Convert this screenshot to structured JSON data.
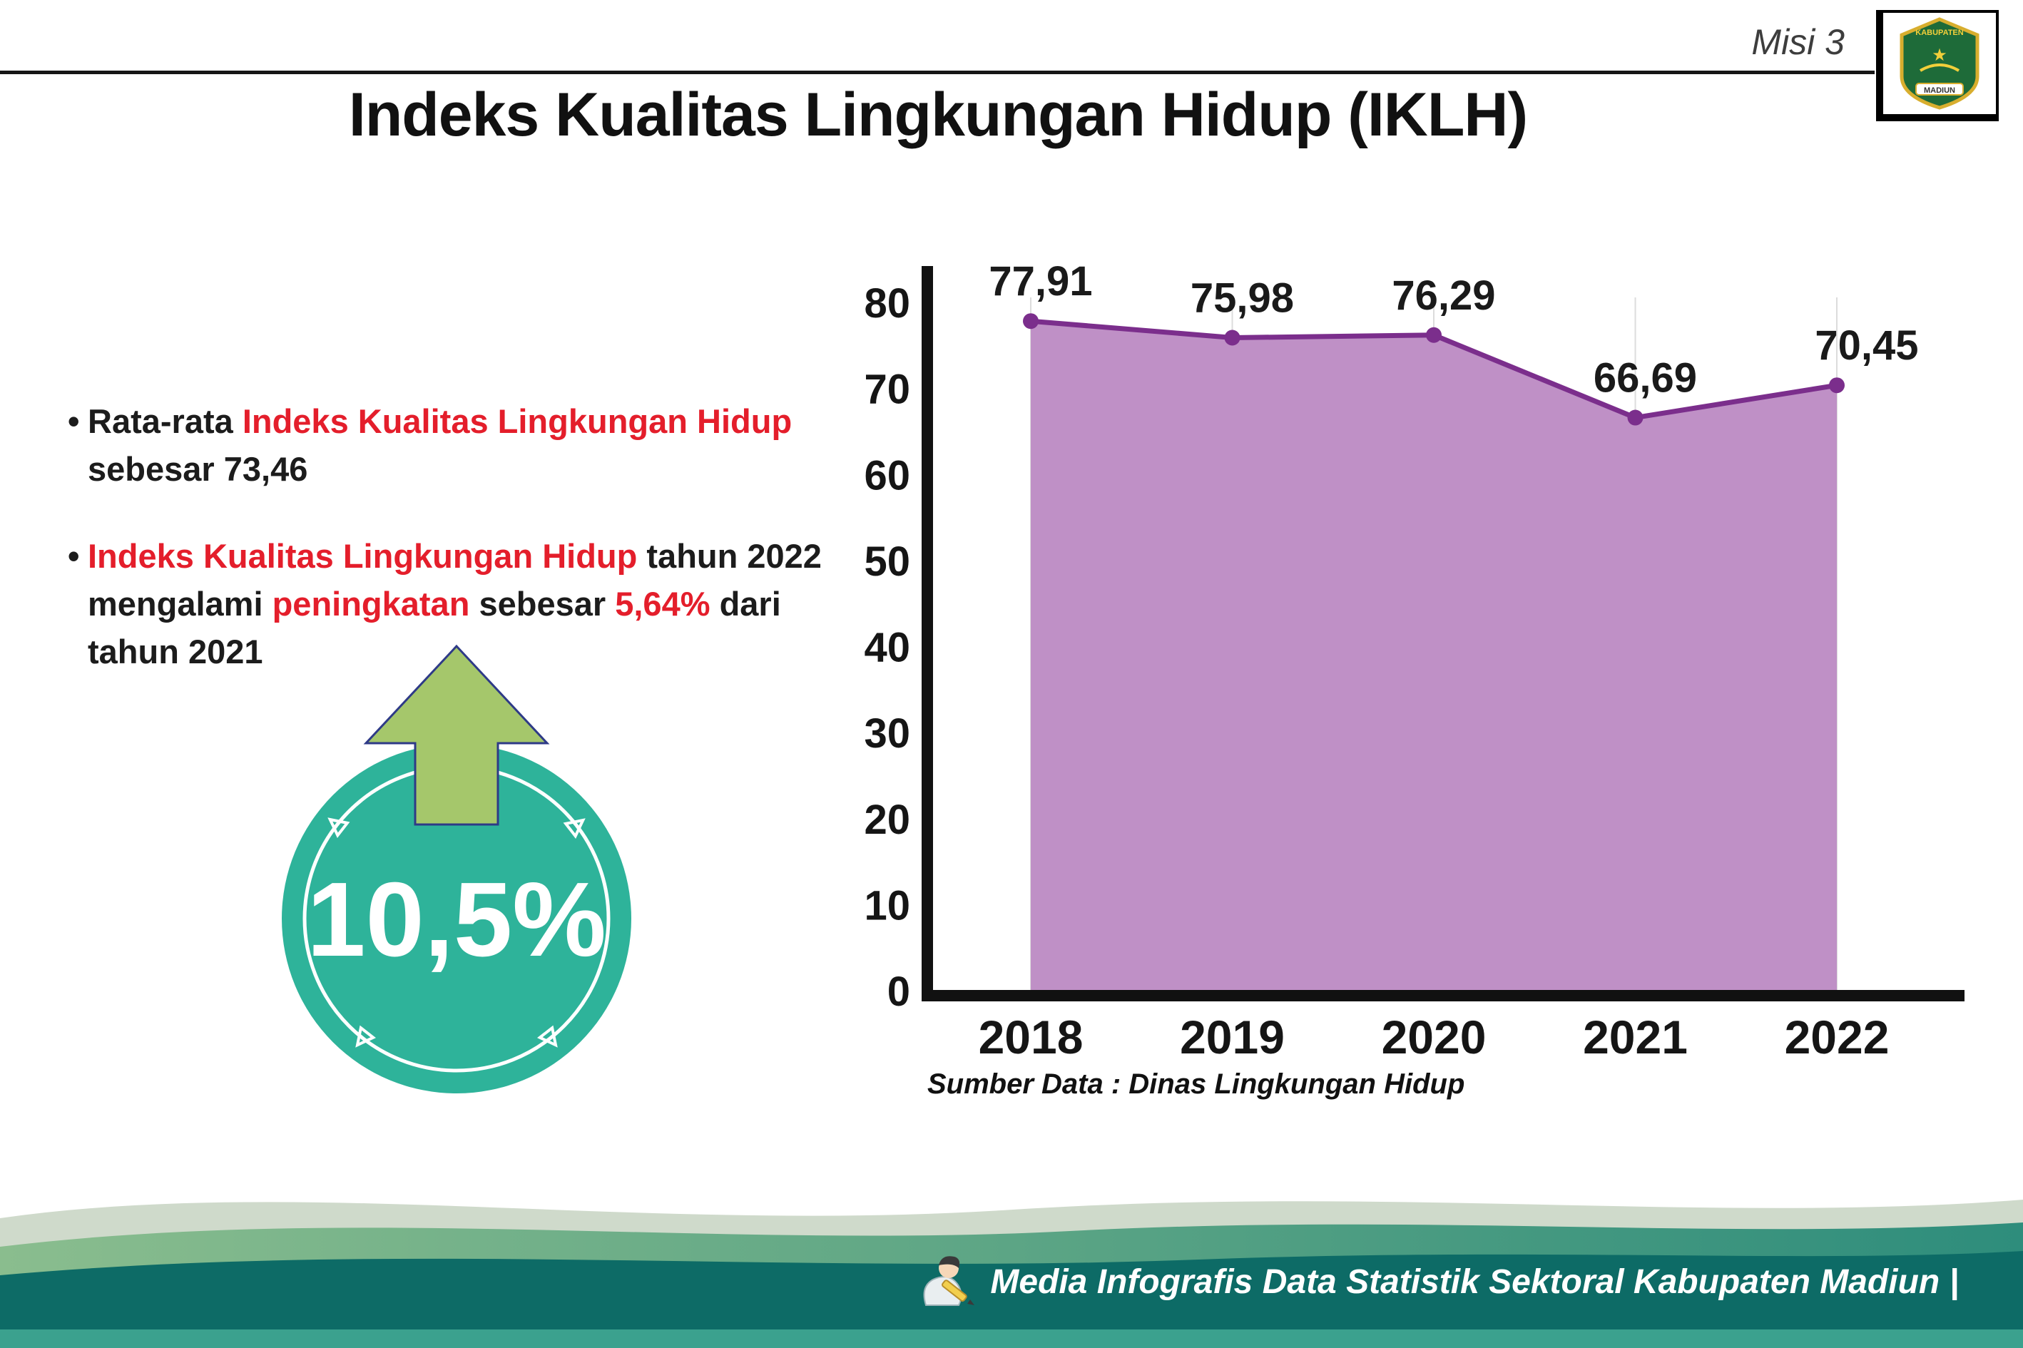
{
  "header": {
    "misi_label": "Misi 3",
    "title": "Indeks Kualitas Lingkungan Hidup (IKLH)"
  },
  "logo": {
    "top_text": "KABUPATEN",
    "bottom_text": "MADIUN"
  },
  "bullet_marker": "•",
  "bullets": [
    {
      "segments": [
        {
          "text": "Rata-rata ",
          "color": "dark"
        },
        {
          "text": "Indeks Kualitas Lingkungan Hidup",
          "color": "red"
        },
        {
          "text": " sebesar 73,46",
          "color": "dark"
        }
      ]
    },
    {
      "segments": [
        {
          "text": "Indeks Kualitas Lingkungan Hidup",
          "color": "red"
        },
        {
          "text": " tahun 2022 mengalami ",
          "color": "dark"
        },
        {
          "text": "peningkatan",
          "color": "red"
        },
        {
          "text": " sebesar ",
          "color": "dark"
        },
        {
          "text": "5,64%",
          "color": "red"
        },
        {
          "text": " dari tahun 2021",
          "color": "dark"
        }
      ]
    }
  ],
  "badge": {
    "value": "10,5%",
    "circle_color": "#2eb39a",
    "arrow_color": "#a5c76b"
  },
  "chart_data": {
    "type": "area",
    "categories": [
      "2018",
      "2019",
      "2020",
      "2021",
      "2022"
    ],
    "values": [
      77.91,
      75.98,
      76.29,
      66.69,
      70.45
    ],
    "value_labels": [
      "77,91",
      "75,98",
      "76,29",
      "66,69",
      "70,45"
    ],
    "ylim": [
      0,
      80
    ],
    "ytick_step": 10,
    "grid": "faint vertical gridlines at each year",
    "legend": "none",
    "line_color": "#7b2e8c",
    "fill_color": "#bf90c6",
    "marker_color": "#7b2e8c",
    "axis_color": "#111111",
    "source_note": "Sumber Data : Dinas Lingkungan Hidup"
  },
  "footer": {
    "credit": "Media Infografis Data Statistik Sektoral Kabupaten Madiun |"
  }
}
